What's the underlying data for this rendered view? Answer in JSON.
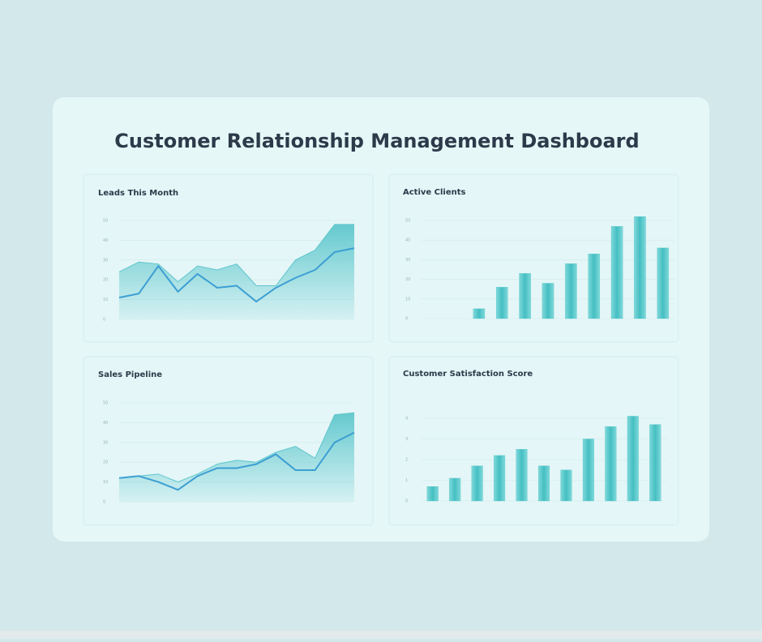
{
  "header": {
    "title": "Customer Relationship Management Dashboard"
  },
  "chart_data": [
    {
      "type": "line",
      "title": "Leads This Month",
      "categories": [
        null,
        null,
        null,
        null,
        null,
        null,
        null,
        null,
        null,
        null,
        null,
        null,
        null
      ],
      "series": [
        {
          "color": "#5cc6cc",
          "fill": true,
          "values": [
            24,
            29,
            28,
            19,
            27,
            25,
            28,
            17,
            17,
            30,
            35,
            48,
            48
          ]
        },
        {
          "color": "#3d9fd3",
          "fill": false,
          "values": [
            11,
            13,
            27,
            14,
            23,
            16,
            17,
            9,
            16,
            21,
            25,
            34,
            36
          ]
        }
      ],
      "ylim": [
        0,
        50
      ],
      "yticks": [
        0,
        10,
        20,
        30,
        40,
        50
      ],
      "grid": true
    },
    {
      "type": "bar",
      "title": "Active Clients",
      "categories": [
        null,
        null,
        null,
        null,
        null,
        null,
        null,
        null,
        null,
        null,
        null
      ],
      "values": [
        0,
        0,
        5,
        16,
        23,
        18,
        28,
        33,
        47,
        52,
        36
      ],
      "color": "#4fc4c6",
      "ylim": [
        0,
        50
      ],
      "yticks": [
        0,
        10,
        20,
        30,
        40,
        50
      ],
      "grid": true
    },
    {
      "type": "line",
      "title": "Sales Pipeline",
      "categories": [
        null,
        null,
        null,
        null,
        null,
        null,
        null,
        null,
        null,
        null,
        null,
        null,
        null
      ],
      "series": [
        {
          "color": "#5cc6cc",
          "fill": true,
          "values": [
            12,
            13,
            14,
            10,
            14,
            19,
            21,
            20,
            25,
            28,
            22,
            44,
            45
          ]
        },
        {
          "color": "#3d9fd3",
          "fill": false,
          "values": [
            12,
            13,
            10,
            6,
            13,
            17,
            17,
            19,
            24,
            16,
            16,
            30,
            35
          ]
        }
      ],
      "ylim": [
        0,
        50
      ],
      "yticks": [
        0,
        10,
        20,
        30,
        40,
        50
      ],
      "grid": true
    },
    {
      "type": "bar",
      "title": "Customer Satisfaction Score",
      "categories": [
        null,
        null,
        null,
        null,
        null,
        null,
        null,
        null,
        null,
        null,
        null
      ],
      "values": [
        0.7,
        1.1,
        1.7,
        2.2,
        2.5,
        1.7,
        1.5,
        3.0,
        3.6,
        4.1,
        3.7
      ],
      "color": "#4fc4c6",
      "ylim": [
        0,
        5
      ],
      "yticks": [
        0,
        1,
        2,
        3,
        4
      ],
      "grid": true
    }
  ]
}
